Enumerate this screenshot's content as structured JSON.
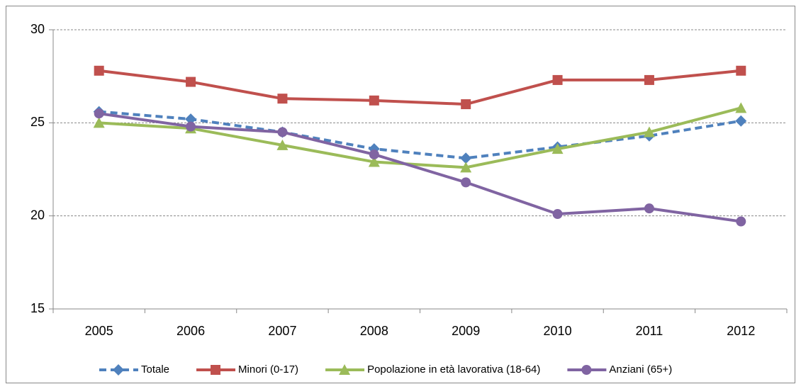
{
  "chart_data": {
    "type": "line",
    "categories": [
      "2005",
      "2006",
      "2007",
      "2008",
      "2009",
      "2010",
      "2011",
      "2012"
    ],
    "series": [
      {
        "name": "Totale",
        "color": "#4f81bd",
        "marker": "diamond",
        "dashed": true,
        "values": [
          25.6,
          25.2,
          24.5,
          23.6,
          23.1,
          23.7,
          24.3,
          25.1
        ]
      },
      {
        "name": "Minori (0-17)",
        "color": "#c0504d",
        "marker": "square",
        "dashed": false,
        "values": [
          27.8,
          27.2,
          26.3,
          26.2,
          26.0,
          27.3,
          27.3,
          27.8
        ]
      },
      {
        "name": "Popolazione in età lavorativa (18-64)",
        "color": "#9bbb59",
        "marker": "triangle",
        "dashed": false,
        "values": [
          25.0,
          24.7,
          23.8,
          22.9,
          22.6,
          23.6,
          24.5,
          25.8
        ]
      },
      {
        "name": "Anziani (65+)",
        "color": "#8064a2",
        "marker": "circle",
        "dashed": false,
        "values": [
          25.5,
          24.8,
          24.5,
          23.3,
          21.8,
          20.1,
          20.4,
          19.7
        ]
      }
    ],
    "ylim": [
      15,
      30
    ],
    "yticks": [
      15,
      20,
      25,
      30
    ],
    "grid": true,
    "legend": "bottom"
  }
}
